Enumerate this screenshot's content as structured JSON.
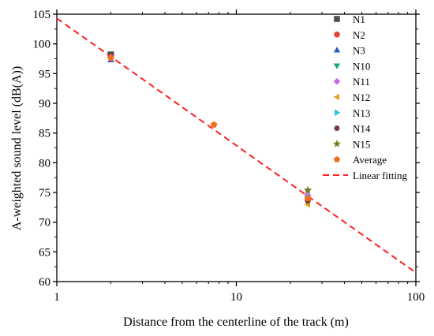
{
  "chart_data": {
    "type": "scatter",
    "xlabel": "Distance from the centerline of the track (m)",
    "ylabel": "A-weighted sound level (dB(A))",
    "xscale": "log",
    "xlim": [
      1,
      100
    ],
    "ylim": [
      60,
      105
    ],
    "xticks": [
      1,
      10,
      100
    ],
    "xtick_labels": [
      "1",
      "10",
      "100"
    ],
    "yticks": [
      60,
      65,
      70,
      75,
      80,
      85,
      90,
      95,
      100,
      105
    ],
    "ytick_labels": [
      "60",
      "65",
      "70",
      "75",
      "80",
      "85",
      "90",
      "95",
      "100",
      "105"
    ],
    "grid": false,
    "legend_position": "top-right",
    "series": [
      {
        "name": "N1",
        "marker": "square",
        "color": "#505050",
        "points": [
          [
            2,
            98.2
          ]
        ]
      },
      {
        "name": "N2",
        "marker": "circle",
        "color": "#e8413a",
        "points": [
          [
            2,
            97.8
          ],
          [
            25,
            74.0
          ]
        ]
      },
      {
        "name": "N3",
        "marker": "triangle-up",
        "color": "#1f5fc0",
        "points": [
          [
            2,
            97.3
          ]
        ]
      },
      {
        "name": "N10",
        "marker": "triangle-down",
        "color": "#14a86e",
        "points": [
          [
            25,
            75.2
          ]
        ]
      },
      {
        "name": "N11",
        "marker": "diamond",
        "color": "#c26ee6",
        "points": [
          [
            25,
            74.5
          ]
        ]
      },
      {
        "name": "N12",
        "marker": "triangle-left",
        "color": "#e0a020",
        "points": [
          [
            25,
            73.0
          ]
        ]
      },
      {
        "name": "N13",
        "marker": "triangle-right",
        "color": "#20c8d2",
        "points": [
          [
            25,
            74.2
          ]
        ]
      },
      {
        "name": "N14",
        "marker": "hexagon",
        "color": "#7a3a3a",
        "points": [
          [
            25,
            73.6
          ]
        ]
      },
      {
        "name": "N15",
        "marker": "star",
        "color": "#7a7a1e",
        "points": [
          [
            25,
            75.4
          ]
        ]
      },
      {
        "name": "Average",
        "marker": "pentagon",
        "color": "#f07020",
        "points": [
          [
            2,
            97.6
          ],
          [
            7.5,
            86.4
          ],
          [
            25,
            74.0
          ]
        ]
      }
    ],
    "fit": {
      "name": "Linear fitting",
      "color": "#ff2020",
      "style": "dashed",
      "x": [
        1,
        100
      ],
      "y": [
        104.3,
        61.5
      ]
    }
  }
}
